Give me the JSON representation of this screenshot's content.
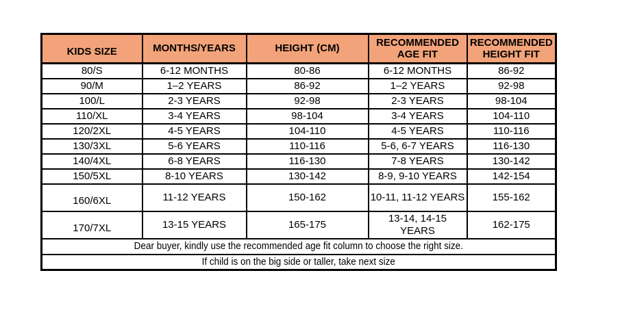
{
  "colors": {
    "header_bg": "#F3A379",
    "border": "#000000",
    "background": "#FFFFFF"
  },
  "chart_data": {
    "type": "table",
    "columns": [
      "KIDS SIZE",
      "MONTHS/YEARS",
      "HEIGHT (CM)",
      "RECOMMENDED AGE FIT",
      "RECOMMENDED HEIGHT FIT"
    ],
    "rows": [
      [
        "80/S",
        "6-12 MONTHS",
        "80-86",
        "6-12 MONTHS",
        "86-92"
      ],
      [
        "90/M",
        "1–2 YEARS",
        "86-92",
        "1–2 YEARS",
        "92-98"
      ],
      [
        "100/L",
        "2-3 YEARS",
        "92-98",
        "2-3 YEARS",
        "98-104"
      ],
      [
        "110/XL",
        "3-4 YEARS",
        "98-104",
        "3-4 YEARS",
        "104-110"
      ],
      [
        "120/2XL",
        "4-5 YEARS",
        "104-110",
        "4-5 YEARS",
        "110-116"
      ],
      [
        "130/3XL",
        "5-6 YEARS",
        "110-116",
        "5-6, 6-7 YEARS",
        "116-130"
      ],
      [
        "140/4XL",
        "6-8 YEARS",
        "116-130",
        "7-8 YEARS",
        "130-142"
      ],
      [
        "150/5XL",
        "8-10 YEARS",
        "130-142",
        "8-9, 9-10 YEARS",
        "142-154"
      ],
      [
        "160/6XL",
        "11-12 YEARS",
        "150-162",
        "10-11, 11-12 YEARS",
        "155-162"
      ],
      [
        "170/7XL",
        "13-15 YEARS",
        "165-175",
        "13-14, 14-15\nYEARS",
        "162-175"
      ]
    ],
    "notes": [
      "Dear buyer, kindly use the recommended age fit column to choose the right size.",
      "If child is on the big side or taller, take next size"
    ]
  }
}
